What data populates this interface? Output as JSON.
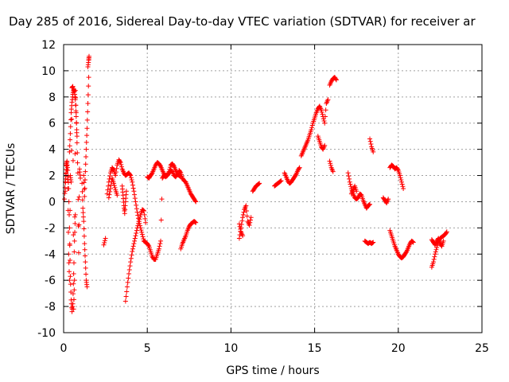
{
  "chart_data": {
    "type": "scatter",
    "title": "Day 285 of 2016, Sidereal Day-to-day VTEC variation (SDTVAR) for receiver ar",
    "xlabel": "GPS time / hours",
    "ylabel": "SDTVAR / TECUs",
    "xlim": [
      0,
      25
    ],
    "ylim": [
      -10,
      12
    ],
    "xticks": [
      0,
      5,
      10,
      15,
      20,
      25
    ],
    "yticks": [
      -10,
      -8,
      -6,
      -4,
      -2,
      0,
      2,
      4,
      6,
      8,
      10,
      12
    ],
    "grid": true,
    "series_color": "#ff0000",
    "marker": "+",
    "segments": [
      {
        "x": [
          0.1,
          0.15,
          0.2,
          0.25,
          0.3,
          0.35,
          0.4,
          0.45,
          0.5,
          0.55,
          0.6,
          0.65,
          0.7,
          0.75,
          0.8,
          0.85,
          0.9,
          0.95,
          1.0
        ],
        "y": [
          0.8,
          2.8,
          3.1,
          1.0,
          -4.0,
          -6.0,
          2.0,
          1.5,
          8.7,
          8.8,
          -8.2,
          -6.0,
          8.5,
          6.8,
          4.5,
          2.2,
          -3.9,
          2.5,
          1.8
        ]
      },
      {
        "x": [
          0.05,
          0.1,
          0.15,
          0.2,
          0.25,
          0.3,
          0.35,
          0.4,
          0.45,
          0.5,
          0.55,
          0.6,
          0.65,
          0.7
        ],
        "y": [
          0.2,
          1.5,
          2.2,
          3.0,
          2.4,
          1.0,
          -2.0,
          -5.7,
          -7.5,
          -8.4,
          -7.8,
          -5.5,
          -3.0,
          -1.0
        ]
      },
      {
        "x": [
          0.35,
          0.4,
          0.45,
          0.5,
          0.55,
          0.6,
          0.65,
          0.7,
          0.75,
          0.8
        ],
        "y": [
          3.8,
          5.2,
          6.8,
          7.6,
          8.2,
          8.6,
          8.4,
          7.8,
          6.5,
          5.0
        ]
      },
      {
        "x": [
          1.1,
          1.15,
          1.2,
          1.25,
          1.3,
          1.35,
          1.4
        ],
        "y": [
          1.4,
          -0.5,
          -1.5,
          -3.2,
          -4.6,
          -6.0,
          -6.5
        ]
      },
      {
        "x": [
          1.2,
          1.25,
          1.3,
          1.35,
          1.4,
          1.45,
          1.5
        ],
        "y": [
          2.0,
          0.4,
          2.3,
          4.0,
          5.6,
          7.5,
          9.5
        ]
      },
      {
        "x": [
          1.45,
          1.5,
          1.52
        ],
        "y": [
          10.3,
          10.8,
          11.1
        ]
      },
      {
        "x": [
          2.4,
          2.5
        ],
        "y": [
          -3.3,
          -2.8
        ]
      },
      {
        "x": [
          2.6,
          2.7,
          2.8,
          2.9,
          3.0,
          3.1,
          3.2,
          3.3,
          3.4,
          3.5,
          3.6,
          3.7,
          3.8,
          3.9,
          4.0,
          4.1,
          4.2,
          4.3,
          4.4,
          4.5,
          4.6,
          4.7,
          4.8
        ],
        "y": [
          0.6,
          1.5,
          2.2,
          2.6,
          2.4,
          2.0,
          2.8,
          3.2,
          3.0,
          2.5,
          2.2,
          2.0,
          2.1,
          2.2,
          2.0,
          1.5,
          0.8,
          0.0,
          -0.8,
          -1.5,
          -2.0,
          -2.5,
          -3.0
        ]
      },
      {
        "x": [
          2.7,
          2.8,
          2.9,
          3.0,
          3.1,
          3.2
        ],
        "y": [
          0.3,
          1.0,
          1.8,
          1.4,
          0.9,
          0.5
        ]
      },
      {
        "x": [
          3.5,
          3.55,
          3.6,
          3.65,
          3.7,
          3.75
        ],
        "y": [
          1.2,
          0.5,
          -0.3,
          -0.9,
          0.0,
          0.8
        ]
      },
      {
        "x": [
          3.7,
          3.8,
          3.9,
          4.0,
          4.1,
          4.2,
          4.3,
          4.4,
          4.5,
          4.6,
          4.7,
          4.8,
          4.9
        ],
        "y": [
          -7.6,
          -6.5,
          -5.5,
          -4.6,
          -3.8,
          -3.2,
          -2.6,
          -2.0,
          -1.5,
          -1.0,
          -0.6,
          -0.7,
          -1.6
        ]
      },
      {
        "x": [
          4.8,
          4.9,
          5.0,
          5.1,
          5.2,
          5.3,
          5.4,
          5.5,
          5.6,
          5.7,
          5.8,
          5.9,
          6.0,
          6.1,
          6.2,
          6.3,
          6.4,
          6.5,
          6.6,
          6.7,
          6.8,
          6.9,
          7.0
        ],
        "y": [
          -3.0,
          -3.1,
          -3.2,
          -3.4,
          -3.8,
          -4.2,
          -4.4,
          -4.4,
          -4.0,
          -3.6,
          -3.0,
          1.8,
          2.0,
          1.9,
          2.0,
          2.3,
          2.8,
          2.9,
          2.7,
          2.4,
          2.1,
          2.0,
          1.9
        ]
      },
      {
        "x": [
          5.0,
          5.1,
          5.2,
          5.3,
          5.4,
          5.5,
          5.6,
          5.7,
          5.8,
          5.9,
          6.0,
          6.1,
          6.2,
          6.3,
          6.4,
          6.5,
          6.6,
          6.7,
          6.8
        ],
        "y": [
          1.9,
          1.8,
          2.0,
          2.2,
          2.5,
          2.8,
          3.0,
          2.9,
          2.7,
          2.4,
          2.1,
          2.0,
          2.0,
          2.2,
          2.4,
          2.3,
          2.0,
          1.9,
          2.1
        ]
      },
      {
        "x": [
          6.9,
          7.0,
          7.1,
          7.2,
          7.3,
          7.4,
          7.5,
          7.6,
          7.7,
          7.8,
          7.9
        ],
        "y": [
          2.4,
          2.2,
          1.8,
          1.6,
          1.5,
          1.2,
          0.9,
          0.6,
          0.4,
          0.2,
          0.0
        ]
      },
      {
        "x": [
          7.0,
          7.1,
          7.2,
          7.3,
          7.4,
          7.5,
          7.6,
          7.7,
          7.8,
          7.9
        ],
        "y": [
          -3.6,
          -3.2,
          -2.9,
          -2.6,
          -2.2,
          -1.9,
          -1.7,
          -1.6,
          -1.5,
          -1.6
        ]
      },
      {
        "x": [
          10.5,
          10.6,
          10.7,
          10.8,
          10.9,
          11.0,
          11.1,
          11.2
        ],
        "y": [
          -2.8,
          -2.0,
          -1.2,
          -0.6,
          -0.3,
          -1.5,
          -1.8,
          -1.2
        ]
      },
      {
        "x": [
          10.5,
          10.6,
          10.7
        ],
        "y": [
          -1.7,
          -2.3,
          -2.6
        ]
      },
      {
        "x": [
          11.3,
          11.4,
          11.5,
          11.6,
          11.7
        ],
        "y": [
          0.8,
          1.0,
          1.2,
          1.3,
          1.4
        ]
      },
      {
        "x": [
          12.6,
          12.7,
          12.8,
          12.9,
          13.0
        ],
        "y": [
          1.2,
          1.3,
          1.4,
          1.5,
          1.6
        ]
      },
      {
        "x": [
          13.2,
          13.3,
          13.4,
          13.5,
          13.6,
          13.7,
          13.8,
          13.9,
          14.0,
          14.1
        ],
        "y": [
          2.2,
          1.9,
          1.6,
          1.4,
          1.5,
          1.7,
          1.9,
          2.1,
          2.4,
          2.6
        ]
      },
      {
        "x": [
          14.2,
          14.3,
          14.4,
          14.5,
          14.6,
          14.7,
          14.8,
          14.9,
          15.0,
          15.1,
          15.2,
          15.3,
          15.4,
          15.5,
          15.6,
          15.7,
          15.8
        ],
        "y": [
          3.5,
          3.8,
          4.1,
          4.4,
          4.7,
          5.1,
          5.5,
          6.0,
          6.4,
          6.8,
          7.1,
          7.3,
          7.0,
          6.5,
          6.0,
          7.5,
          7.8
        ]
      },
      {
        "x": [
          15.2,
          15.3,
          15.4,
          15.5,
          15.6
        ],
        "y": [
          5.0,
          4.6,
          4.2,
          4.0,
          4.3
        ]
      },
      {
        "x": [
          15.9,
          16.0,
          16.1
        ],
        "y": [
          3.1,
          2.6,
          2.3
        ]
      },
      {
        "x": [
          15.9,
          16.0,
          16.1,
          16.2,
          16.3
        ],
        "y": [
          8.9,
          9.2,
          9.4,
          9.5,
          9.3
        ]
      },
      {
        "x": [
          17.0,
          17.1,
          17.2,
          17.3,
          17.4,
          17.5,
          17.6,
          17.7,
          17.8,
          17.9,
          18.0,
          18.1,
          18.2,
          18.3
        ],
        "y": [
          2.2,
          1.5,
          1.0,
          0.6,
          0.3,
          0.2,
          0.3,
          0.6,
          0.5,
          0.1,
          -0.2,
          -0.5,
          -0.3,
          -0.2
        ]
      },
      {
        "x": [
          17.2,
          17.3,
          17.4,
          17.5
        ],
        "y": [
          0.6,
          0.9,
          1.2,
          0.8
        ]
      },
      {
        "x": [
          18.3,
          18.4,
          18.5
        ],
        "y": [
          4.8,
          4.2,
          3.8
        ]
      },
      {
        "x": [
          18.0,
          18.1,
          18.2,
          18.3,
          18.4,
          18.5
        ],
        "y": [
          -3.0,
          -3.1,
          -3.2,
          -3.1,
          -3.2,
          -3.1
        ]
      },
      {
        "x": [
          19.1,
          19.2,
          19.3,
          19.4
        ],
        "y": [
          0.3,
          0.1,
          -0.1,
          0.2
        ]
      },
      {
        "x": [
          19.5,
          19.6,
          19.7,
          19.8,
          19.9,
          20.0,
          20.1,
          20.2,
          20.3
        ],
        "y": [
          2.6,
          2.8,
          2.7,
          2.5,
          2.6,
          2.4,
          2.0,
          1.5,
          1.0
        ]
      },
      {
        "x": [
          19.5,
          19.6,
          19.7,
          19.8,
          19.9,
          20.0,
          20.1,
          20.2,
          20.3,
          20.4,
          20.5,
          20.6,
          20.7,
          20.8,
          20.9
        ],
        "y": [
          -2.2,
          -2.6,
          -3.0,
          -3.4,
          -3.7,
          -4.0,
          -4.2,
          -4.3,
          -4.2,
          -4.0,
          -3.8,
          -3.5,
          -3.2,
          -3.0,
          -3.1
        ]
      },
      {
        "x": [
          22.0,
          22.1,
          22.2,
          22.3,
          22.4,
          22.5,
          22.6,
          22.7,
          22.8,
          22.9
        ],
        "y": [
          -5.0,
          -4.6,
          -4.0,
          -3.5,
          -3.0,
          -2.8,
          -2.7,
          -2.6,
          -2.5,
          -2.3
        ]
      },
      {
        "x": [
          22.0,
          22.1,
          22.2,
          22.3,
          22.4,
          22.5,
          22.6,
          22.7
        ],
        "y": [
          -2.9,
          -3.1,
          -3.3,
          -3.0,
          -2.8,
          -3.2,
          -3.4,
          -3.0
        ]
      }
    ]
  }
}
